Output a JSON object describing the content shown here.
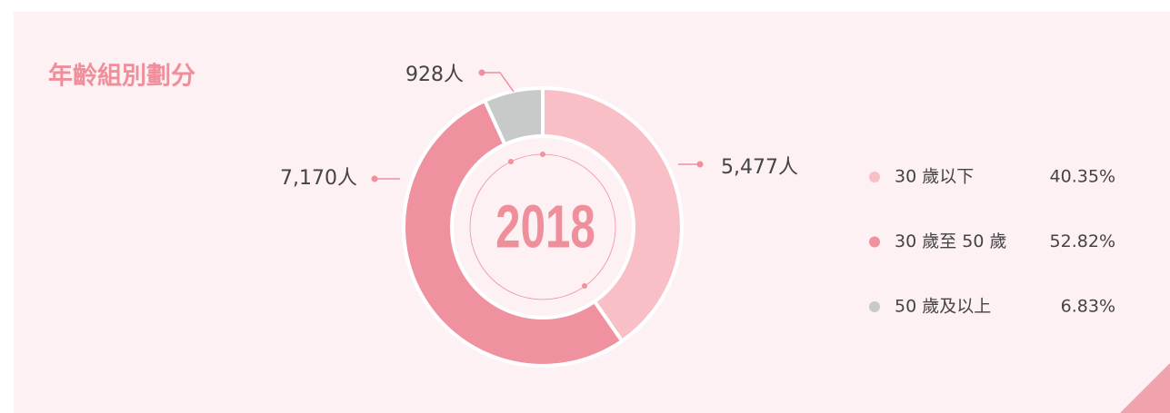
{
  "chart_data": {
    "type": "pie",
    "title": "年齡組別劃分",
    "center_label": "2018",
    "categories": [
      "30 歲以下",
      "30 歲至 50 歲",
      "50 歲及以上"
    ],
    "values": [
      5477,
      7170,
      928
    ],
    "value_labels": [
      "5,477人",
      "7,170人",
      "928人"
    ],
    "shares": [
      40.35,
      52.82,
      6.83
    ],
    "share_labels": [
      "40.35%",
      "52.82%",
      "6.83%"
    ],
    "colors": [
      "#f8c0c6",
      "#f0919f",
      "#c8c9c9"
    ]
  }
}
